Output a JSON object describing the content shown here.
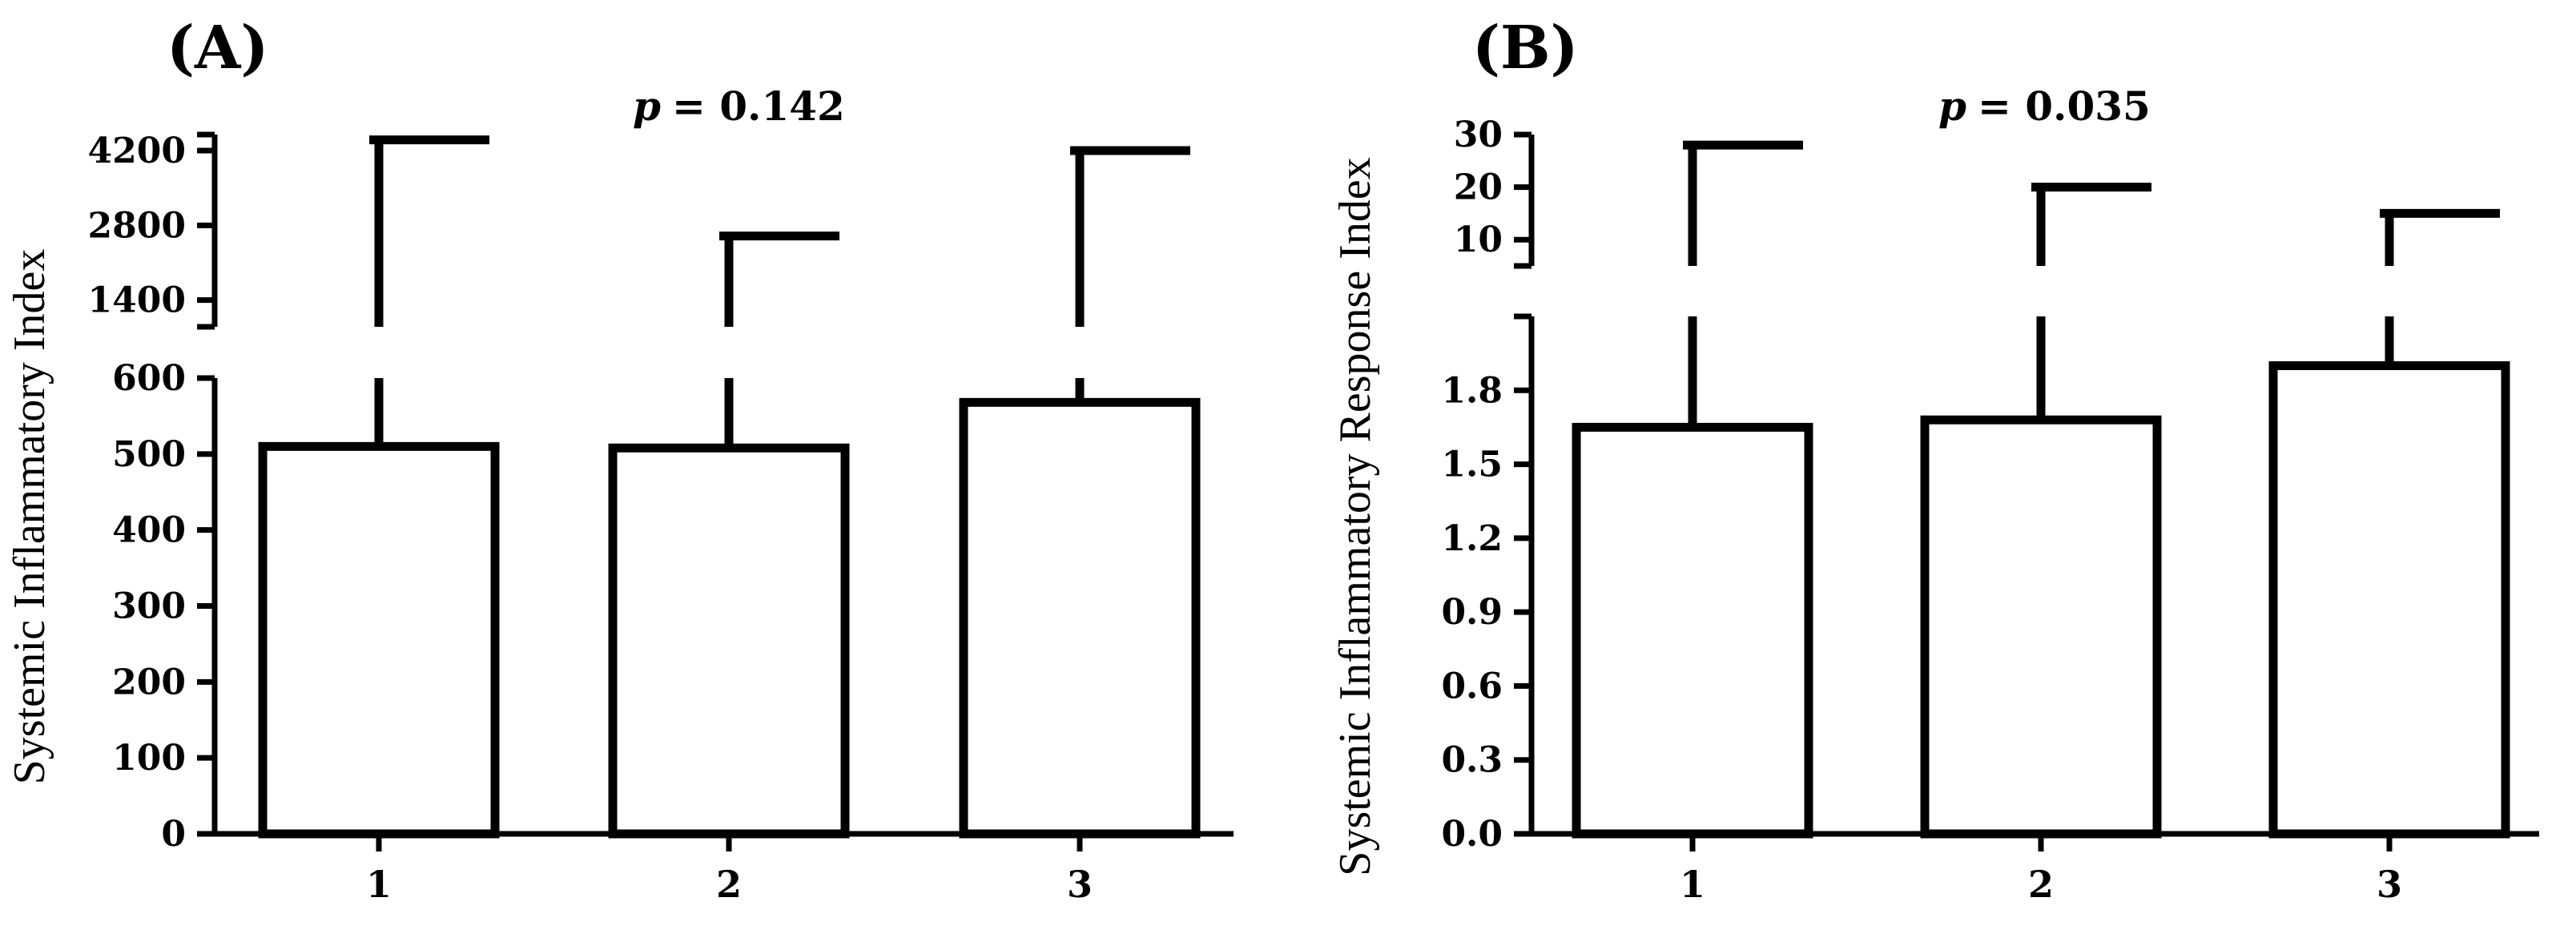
{
  "chart_data": [
    {
      "type": "bar",
      "panel": "(A)",
      "title": "p = 0.142",
      "p_label": "p",
      "p_value": "= 0.142",
      "ylabel": "Systemic Inflammatory Index",
      "xlabel": "",
      "categories": [
        "1",
        "2",
        "3"
      ],
      "values": [
        510,
        508,
        568
      ],
      "error_upper": [
        4400,
        2600,
        4200
      ],
      "axis_break": true,
      "lower_segment": {
        "ylim": [
          0,
          600
        ],
        "ticks": [
          "0",
          "100",
          "200",
          "300",
          "400",
          "500",
          "600"
        ]
      },
      "upper_segment": {
        "ylim": [
          900,
          4500
        ],
        "ticks": [
          "1400",
          "2800",
          "4200"
        ]
      }
    },
    {
      "type": "bar",
      "panel": "(B)",
      "title": "p = 0.035",
      "p_label": "p",
      "p_value": "= 0.035",
      "ylabel": "Systemic Inflammatory Response Index",
      "xlabel": "",
      "categories": [
        "1",
        "2",
        "3"
      ],
      "values": [
        1.65,
        1.68,
        1.9
      ],
      "error_upper": [
        28,
        20,
        15
      ],
      "axis_break": true,
      "lower_segment": {
        "ylim": [
          0,
          2.1
        ],
        "ticks": [
          "0.0",
          "0.3",
          "0.6",
          "0.9",
          "1.2",
          "1.5",
          "1.8"
        ]
      },
      "upper_segment": {
        "ylim": [
          5,
          30
        ],
        "ticks": [
          "10",
          "20",
          "30"
        ]
      }
    }
  ]
}
